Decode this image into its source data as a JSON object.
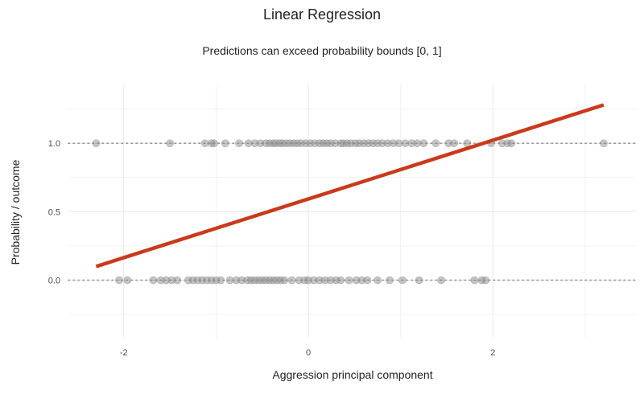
{
  "chart_data": {
    "type": "scatter",
    "title": "Linear Regression",
    "subtitle": "Predictions can exceed probability bounds [0, 1]",
    "xlabel": "Aggression principal component",
    "ylabel": "Probability / outcome",
    "xlim": [
      -2.6,
      3.55
    ],
    "ylim": [
      -0.42,
      1.43
    ],
    "x_ticks": [
      -2,
      0,
      2
    ],
    "x_tick_labels": [
      "-2",
      "0",
      "2"
    ],
    "y_ticks": [
      0.0,
      0.5,
      1.0
    ],
    "y_tick_labels": [
      "0.0",
      "0.5",
      "1.0"
    ],
    "grid": true,
    "reference_lines_dotted": [
      0,
      1
    ],
    "colors": {
      "points": "#8c8c8c",
      "fit_line": "#c93a1c",
      "grid": "#ebebeb",
      "reference": "#999999"
    },
    "fit_line": {
      "x": [
        -2.3,
        3.2
      ],
      "y": [
        0.1,
        1.28
      ]
    },
    "series": [
      {
        "outcome": 1,
        "x": [
          -2.3,
          -1.5,
          -1.12,
          -1.05,
          -1.02,
          -0.9,
          -0.75,
          -0.65,
          -0.58,
          -0.52,
          -0.46,
          -0.42,
          -0.38,
          -0.35,
          -0.31,
          -0.28,
          -0.24,
          -0.2,
          -0.16,
          -0.12,
          -0.08,
          -0.03,
          0.02,
          0.07,
          0.12,
          0.16,
          0.2,
          0.24,
          0.29,
          0.35,
          0.38,
          0.42,
          0.46,
          0.51,
          0.55,
          0.6,
          0.65,
          0.7,
          0.75,
          0.8,
          0.86,
          0.92,
          0.98,
          1.05,
          1.12,
          1.18,
          1.25,
          1.38,
          1.52,
          1.58,
          1.72,
          1.98,
          2.1,
          2.16,
          2.2,
          3.2
        ],
        "y": [
          1,
          1,
          1,
          1,
          1,
          1,
          1,
          1,
          1,
          1,
          1,
          1,
          1,
          1,
          1,
          1,
          1,
          1,
          1,
          1,
          1,
          1,
          1,
          1,
          1,
          1,
          1,
          1,
          1,
          1,
          1,
          1,
          1,
          1,
          1,
          1,
          1,
          1,
          1,
          1,
          1,
          1,
          1,
          1,
          1,
          1,
          1,
          1,
          1,
          1,
          1,
          1,
          1,
          1,
          1,
          1
        ]
      },
      {
        "outcome": 0,
        "x": [
          -2.05,
          -1.96,
          -1.68,
          -1.6,
          -1.54,
          -1.48,
          -1.42,
          -1.3,
          -1.25,
          -1.2,
          -1.15,
          -1.1,
          -1.05,
          -1.0,
          -0.95,
          -0.85,
          -0.78,
          -0.72,
          -0.66,
          -0.62,
          -0.58,
          -0.54,
          -0.5,
          -0.46,
          -0.42,
          -0.38,
          -0.34,
          -0.3,
          -0.26,
          -0.18,
          -0.1,
          -0.04,
          0.0,
          0.06,
          0.12,
          0.18,
          0.24,
          0.3,
          0.35,
          0.44,
          0.52,
          0.58,
          0.64,
          0.75,
          0.88,
          1.02,
          1.2,
          1.44,
          1.8,
          1.88,
          1.92
        ],
        "y": [
          0,
          0,
          0,
          0,
          0,
          0,
          0,
          0,
          0,
          0,
          0,
          0,
          0,
          0,
          0,
          0,
          0,
          0,
          0,
          0,
          0,
          0,
          0,
          0,
          0,
          0,
          0,
          0,
          0,
          0,
          0,
          0,
          0,
          0,
          0,
          0,
          0,
          0,
          0,
          0,
          0,
          0,
          0,
          0,
          0,
          0,
          0,
          0,
          0,
          0,
          0
        ]
      }
    ]
  }
}
